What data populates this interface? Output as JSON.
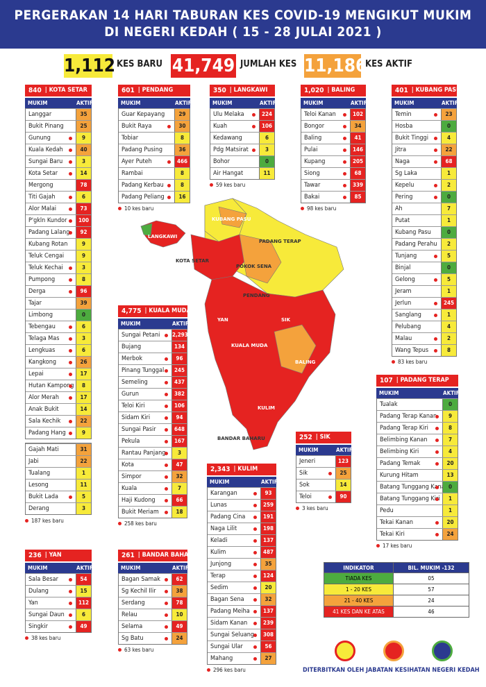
{
  "header": {
    "line1": "PERGERAKAN 14 HARI TABURAN KES COVID-19 MENGIKUT MUKIM",
    "line2": "DI NEGERI KEDAH ( 15 - 28 JULAI 2021 )"
  },
  "stats": {
    "baru": "1,112",
    "baru_label": "KES BARU",
    "jumlah": "41,749",
    "jumlah_label": "JUMLAH KES",
    "aktif": "11,186",
    "aktif_label": "KES AKTIF"
  },
  "col_mukim": "MUKIM",
  "col_aktif": "AKTIF",
  "colors": {
    "red": "#e52321",
    "orange": "#f4a23c",
    "yellow": "#f7ea3a",
    "green": "#4dab3f",
    "navy": "#2b3a8f"
  },
  "districts": [
    {
      "count": "840",
      "name": "KOTA SETAR",
      "rows": [
        [
          "Langgar",
          "35",
          0
        ],
        [
          "Bukit Pinang",
          "25",
          0
        ],
        [
          "Gunung",
          "9",
          1
        ],
        [
          "Kuala Kedah",
          "40",
          1
        ],
        [
          "Sungai Baru",
          "3",
          1
        ],
        [
          "Kota Setar",
          "14",
          1
        ],
        [
          "Mergong",
          "78",
          0
        ],
        [
          "Titi Gajah",
          "6",
          1
        ],
        [
          "Alor Malai",
          "73",
          1
        ],
        [
          "P'gkln Kundor",
          "100",
          1
        ],
        [
          "Padang Lalang",
          "92",
          1
        ],
        [
          "Kubang Rotan",
          "9",
          0
        ],
        [
          "Teluk Cengai",
          "9",
          0
        ],
        [
          "Teluk Kechai",
          "3",
          1
        ],
        [
          "Pumpong",
          "8",
          1
        ],
        [
          "Derga",
          "96",
          1
        ],
        [
          "Tajar",
          "39",
          0
        ],
        [
          "Limbong",
          "0",
          0
        ],
        [
          "Tebengau",
          "6",
          1
        ],
        [
          "Telaga Mas",
          "3",
          1
        ],
        [
          "Lengkuas",
          "6",
          1
        ],
        [
          "Kangkong",
          "26",
          1
        ],
        [
          "Lepai",
          "17",
          1
        ],
        [
          "Hutan Kampong",
          "8",
          1
        ],
        [
          "Alor Merah",
          "17",
          1
        ],
        [
          "Anak Bukit",
          "14",
          0
        ],
        [
          "Sala Kechik",
          "22",
          1
        ],
        [
          "Padang Hang",
          "9",
          1
        ]
      ],
      "rows2": [
        [
          "Gajah Mati",
          "31",
          0
        ],
        [
          "Jabi",
          "22",
          0
        ],
        [
          "Tualang",
          "1",
          0
        ],
        [
          "Lesong",
          "11",
          0
        ],
        [
          "Bukit Lada",
          "5",
          1
        ],
        [
          "Derang",
          "3",
          0
        ]
      ],
      "foot": "187 kes baru"
    },
    {
      "count": "601",
      "name": "PENDANG",
      "rows": [
        [
          "Guar Kepayang",
          "29",
          0
        ],
        [
          "Bukit Raya",
          "30",
          1
        ],
        [
          "Tobiar",
          "8",
          0
        ],
        [
          "Padang Pusing",
          "36",
          0
        ],
        [
          "Ayer Puteh",
          "466",
          1
        ],
        [
          "Rambai",
          "8",
          0
        ],
        [
          "Padang Kerbau",
          "8",
          1
        ],
        [
          "Padang Peliang",
          "16",
          1
        ]
      ],
      "foot": "10 kes baru"
    },
    {
      "count": "350",
      "name": "LANGKAWI",
      "rows": [
        [
          "Ulu Melaka",
          "224",
          1
        ],
        [
          "Kuah",
          "106",
          1
        ],
        [
          "Kedawang",
          "6",
          0
        ],
        [
          "Pdg Matsirat",
          "3",
          1
        ],
        [
          "Bohor",
          "0",
          0
        ],
        [
          "Air Hangat",
          "11",
          0
        ]
      ],
      "foot": "59 kes baru"
    },
    {
      "count": "1,020",
      "name": "BALING",
      "rows": [
        [
          "Teloi Kanan",
          "102",
          1
        ],
        [
          "Bongor",
          "34",
          1
        ],
        [
          "Baling",
          "41",
          1
        ],
        [
          "Pulai",
          "146",
          1
        ],
        [
          "Kupang",
          "205",
          1
        ],
        [
          "Siong",
          "68",
          1
        ],
        [
          "Tawar",
          "339",
          1
        ],
        [
          "Bakai",
          "85",
          1
        ]
      ],
      "foot": "98 kes baru"
    },
    {
      "count": "401",
      "name": "KUBANG PASU",
      "rows": [
        [
          "Temin",
          "23",
          1
        ],
        [
          "Hosba",
          "0",
          0
        ],
        [
          "Bukit Tinggi",
          "4",
          1
        ],
        [
          "Jitra",
          "22",
          1
        ],
        [
          "Naga",
          "68",
          1
        ],
        [
          "Sg Laka",
          "1",
          0
        ],
        [
          "Kepelu",
          "2",
          1
        ],
        [
          "Pering",
          "0",
          1
        ],
        [
          "Ah",
          "7",
          0
        ],
        [
          "Putat",
          "1",
          0
        ],
        [
          "Kubang Pasu",
          "0",
          0
        ],
        [
          "Padang Perahu",
          "2",
          0
        ],
        [
          "Tunjang",
          "5",
          1
        ],
        [
          "Binjal",
          "0",
          0
        ],
        [
          "Gelong",
          "5",
          1
        ],
        [
          "Jeram",
          "1",
          0
        ],
        [
          "Jerlun",
          "245",
          1
        ],
        [
          "Sanglang",
          "1",
          1
        ],
        [
          "Pelubang",
          "4",
          0
        ],
        [
          "Malau",
          "2",
          1
        ],
        [
          "Wang Tepus",
          "8",
          1
        ]
      ],
      "foot": "83 kes baru"
    },
    {
      "count": "4,775",
      "name": "KUALA MUDA",
      "rows": [
        [
          "Sungai Petani",
          "2,293",
          1
        ],
        [
          "Bujang",
          "134",
          0
        ],
        [
          "Merbok",
          "96",
          1
        ],
        [
          "Pinang Tunggal",
          "245",
          1
        ],
        [
          "Semeling",
          "437",
          1
        ],
        [
          "Gurun",
          "382",
          1
        ],
        [
          "Teloi Kiri",
          "106",
          1
        ],
        [
          "Sidam Kiri",
          "94",
          1
        ],
        [
          "Sungai Pasir",
          "648",
          1
        ],
        [
          "Pekula",
          "167",
          1
        ],
        [
          "Rantau Panjang",
          "3",
          1
        ],
        [
          "Kota",
          "47",
          1
        ],
        [
          "Simpor",
          "32",
          1
        ],
        [
          "Kuala",
          "7",
          1
        ],
        [
          "Haji Kudong",
          "66",
          1
        ],
        [
          "Bukit Meriam",
          "18",
          1
        ]
      ],
      "foot": "258 kes baru"
    },
    {
      "count": "107",
      "name": "PADANG TERAP",
      "rows": [
        [
          "Tualak",
          "0",
          0
        ],
        [
          "Padang Terap Kanan",
          "9",
          1
        ],
        [
          "Padang Terap Kiri",
          "8",
          1
        ],
        [
          "Belimbing Kanan",
          "7",
          1
        ],
        [
          "Belimbing Kiri",
          "4",
          1
        ],
        [
          "Padang Temak",
          "20",
          1
        ],
        [
          "Kurung Hitam",
          "13",
          0
        ],
        [
          "Batang Tunggang Kanan",
          "0",
          1
        ],
        [
          "Batang Tunggang Kiri",
          "1",
          1
        ],
        [
          "Pedu",
          "1",
          0
        ],
        [
          "Tekai Kanan",
          "20",
          1
        ],
        [
          "Tekai Kiri",
          "24",
          1
        ]
      ],
      "foot": "17 kes baru"
    },
    {
      "count": "252",
      "name": "SIK",
      "rows": [
        [
          "Jeneri",
          "123",
          0
        ],
        [
          "Sik",
          "25",
          1
        ],
        [
          "Sok",
          "14",
          0
        ],
        [
          "Teloi",
          "90",
          1
        ]
      ],
      "foot": "3 kes baru"
    },
    {
      "count": "2,343",
      "name": "KULIM",
      "rows": [
        [
          "Karangan",
          "93",
          1
        ],
        [
          "Lunas",
          "259",
          1
        ],
        [
          "Padang Cina",
          "191",
          1
        ],
        [
          "Naga Lilit",
          "198",
          1
        ],
        [
          "Keladi",
          "137",
          1
        ],
        [
          "Kulim",
          "487",
          1
        ],
        [
          "Junjong",
          "35",
          1
        ],
        [
          "Terap",
          "124",
          1
        ],
        [
          "Sedim",
          "20",
          1
        ],
        [
          "Bagan Sena",
          "32",
          1
        ],
        [
          "Padang Meiha",
          "137",
          1
        ],
        [
          "Sidam Kanan",
          "239",
          1
        ],
        [
          "Sungai Seluang",
          "308",
          1
        ],
        [
          "Sungai Ular",
          "56",
          1
        ],
        [
          "Mahang",
          "27",
          1
        ]
      ],
      "foot": "296 kes baru"
    },
    {
      "count": "236",
      "name": "YAN",
      "rows": [
        [
          "Sala Besar",
          "54",
          1
        ],
        [
          "Dulang",
          "15",
          1
        ],
        [
          "Yan",
          "112",
          1
        ],
        [
          "Sungai Daun",
          "6",
          1
        ],
        [
          "Singkir",
          "49",
          1
        ]
      ],
      "foot": "38 kes baru"
    },
    {
      "count": "261",
      "name": "BANDAR BAHARU",
      "rows": [
        [
          "Bagan Samak",
          "62",
          1
        ],
        [
          "Sg Kechil Ilir",
          "38",
          1
        ],
        [
          "Serdang",
          "78",
          1
        ],
        [
          "Relau",
          "10",
          1
        ],
        [
          "Selama",
          "49",
          1
        ],
        [
          "Sg Batu",
          "24",
          1
        ]
      ],
      "foot": "63 kes baru"
    }
  ],
  "map_labels": [
    "LANGKAWI",
    "KUBANG PASU",
    "PADANG TERAP",
    "KOTA SETAR",
    "POKOK SENA",
    "PENDANG",
    "YAN",
    "SIK",
    "KUALA MUDA",
    "BALING",
    "KULIM",
    "BANDAR BAHARU"
  ],
  "indicator": {
    "h1": "INDIKATOR",
    "h2": "BIL. MUKIM -132",
    "rows": [
      [
        "TIADA KES",
        "05"
      ],
      [
        "1 - 20 KES",
        "57"
      ],
      [
        "21 - 40 KES",
        "24"
      ],
      [
        "41 KES DAN KE ATAS",
        "46"
      ]
    ]
  },
  "publisher": "DITERBITKAN OLEH JABATAN KESIHATAN NEGERI KEDAH"
}
